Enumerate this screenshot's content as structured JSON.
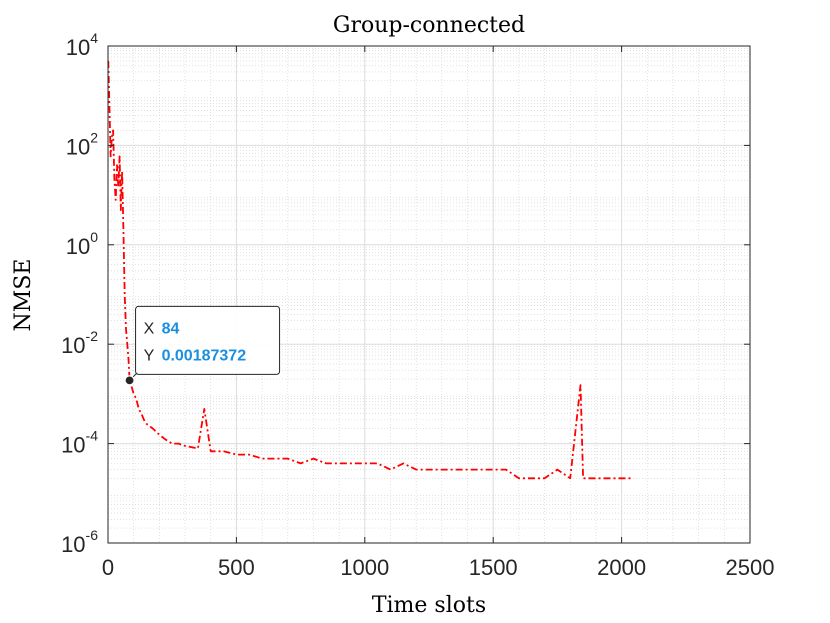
{
  "chart_data": {
    "type": "line",
    "title": "Group-connected",
    "xlabel": "Time slots",
    "ylabel": "NMSE",
    "xlim": [
      0,
      2500
    ],
    "ylim": [
      1e-06,
      10000
    ],
    "yscale": "log",
    "grid": true,
    "minor_grid": true,
    "x_ticks": [
      "0",
      "500",
      "1000",
      "1500",
      "2000",
      "2500"
    ],
    "y_ticks": [
      {
        "base": "10",
        "exp": "-6"
      },
      {
        "base": "10",
        "exp": "-4"
      },
      {
        "base": "10",
        "exp": "-2"
      },
      {
        "base": "10",
        "exp": "0"
      },
      {
        "base": "10",
        "exp": "2"
      },
      {
        "base": "10",
        "exp": "4"
      }
    ],
    "series": [
      {
        "color": "#ff0000",
        "line_style": "dash-dot",
        "x": [
          1,
          5,
          10,
          15,
          20,
          25,
          30,
          35,
          40,
          45,
          50,
          55,
          60,
          65,
          70,
          75,
          80,
          84,
          90,
          100,
          110,
          120,
          130,
          140,
          150,
          175,
          200,
          225,
          250,
          275,
          300,
          350,
          375,
          400,
          450,
          500,
          550,
          600,
          650,
          700,
          750,
          800,
          850,
          900,
          950,
          1000,
          1050,
          1100,
          1150,
          1200,
          1250,
          1300,
          1350,
          1400,
          1450,
          1500,
          1550,
          1600,
          1650,
          1700,
          1750,
          1800,
          1840,
          1850,
          1900,
          1950,
          2000,
          2040
        ],
        "y": [
          5000,
          800,
          60,
          150,
          200,
          20,
          8,
          40,
          15,
          60,
          5,
          30,
          2,
          0.1,
          0.02,
          0.01,
          0.005,
          0.00187,
          0.0015,
          0.001,
          0.0008,
          0.0005,
          0.0004,
          0.0003,
          0.00025,
          0.0002,
          0.00015,
          0.00012,
          0.0001,
          0.0001,
          9e-05,
          8e-05,
          0.0005,
          7e-05,
          7e-05,
          6e-05,
          6e-05,
          5e-05,
          5e-05,
          5e-05,
          4e-05,
          5e-05,
          4e-05,
          4e-05,
          4e-05,
          4e-05,
          4e-05,
          3e-05,
          4e-05,
          3e-05,
          3e-05,
          3e-05,
          3e-05,
          3e-05,
          3e-05,
          3e-05,
          3e-05,
          2e-05,
          2e-05,
          2e-05,
          3e-05,
          2e-05,
          0.0015,
          2e-05,
          2e-05,
          2e-05,
          2e-05,
          2e-05
        ]
      }
    ],
    "data_tip": {
      "x": 84,
      "y": 0.00187372,
      "x_key": "X",
      "y_key": "Y",
      "x_text": "84",
      "y_text": "0.00187372"
    }
  }
}
